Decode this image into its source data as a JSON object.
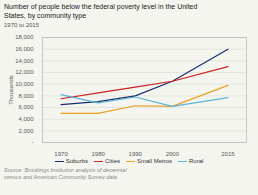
{
  "chart_data": {
    "type": "line",
    "title": "Number of people below the federal poverty level in the United\nStates, by community type",
    "subtitle": "1970 to 2015",
    "ylabel": "Thousands",
    "caption": "Source: Brookings Institution analysis of decennial\ncensus and American Community Survey data",
    "x": [
      1970,
      1980,
      1990,
      2000,
      2015
    ],
    "series": [
      {
        "name": "Suburbs",
        "color": "#1a2f6e",
        "values": [
          6500,
          7000,
          8000,
          10500,
          16000
        ]
      },
      {
        "name": "Cities",
        "color": "#cc2222",
        "values": [
          7500,
          8500,
          9500,
          10500,
          13000
        ]
      },
      {
        "name": "Small Metros",
        "color": "#e8a020",
        "values": [
          5000,
          5000,
          6300,
          6200,
          9800
        ]
      },
      {
        "name": "Rural",
        "color": "#5ab4d4",
        "values": [
          8200,
          6800,
          7800,
          6200,
          7700
        ]
      }
    ],
    "xlim": [
      1965,
      2020
    ],
    "xticks": [
      1970,
      1980,
      1990,
      2000,
      2015
    ],
    "ylim": [
      0,
      18000
    ],
    "yticks": [
      {
        "value": 0,
        "label": "-"
      },
      {
        "value": 2000,
        "label": "2,000"
      },
      {
        "value": 4000,
        "label": "4,000"
      },
      {
        "value": 6000,
        "label": "6,000"
      },
      {
        "value": 8000,
        "label": "8,000"
      },
      {
        "value": 10000,
        "label": "10,000"
      },
      {
        "value": 12000,
        "label": "12,000"
      },
      {
        "value": 14000,
        "label": "14,000"
      },
      {
        "value": 16000,
        "label": "16,000"
      },
      {
        "value": 18000,
        "label": "18,000"
      }
    ],
    "grid": true,
    "legend": "bottom"
  }
}
